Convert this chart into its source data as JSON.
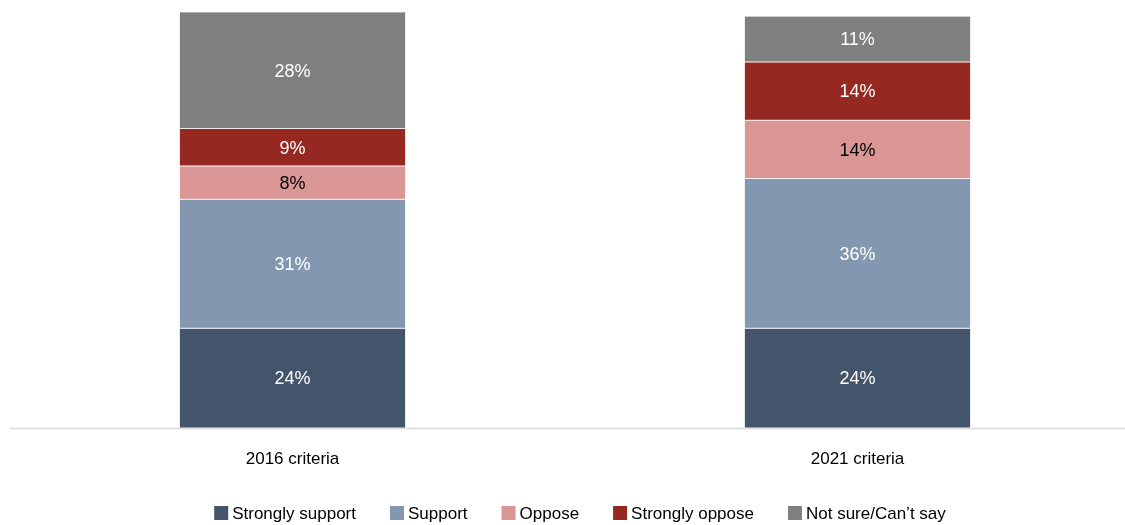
{
  "chart_data": {
    "type": "bar",
    "stacked": true,
    "legend": "bottom",
    "categories": [
      "2016 criteria",
      "2021 criteria"
    ],
    "series": [
      {
        "name": "Strongly support",
        "color": "#44546a",
        "values": [
          24,
          24
        ],
        "value_labels": [
          "24%",
          "24%"
        ]
      },
      {
        "name": "Support",
        "color": "#8497b0",
        "values": [
          31,
          36
        ],
        "value_labels": [
          "31%",
          "36%"
        ]
      },
      {
        "name": "Oppose",
        "color": "#da9694",
        "values": [
          8,
          14
        ],
        "value_labels": [
          "8%",
          "14%"
        ]
      },
      {
        "name": "Strongly oppose",
        "color": "#952921",
        "values": [
          9,
          14
        ],
        "value_labels": [
          "9%",
          "14%"
        ]
      },
      {
        "name": "Not sure/Can’t say",
        "color": "#7f7f7f",
        "values": [
          28,
          11
        ],
        "value_labels": [
          "28%",
          "11%"
        ]
      }
    ]
  }
}
